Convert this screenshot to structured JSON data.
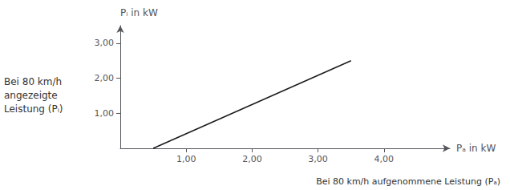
{
  "chart_data": {
    "type": "line",
    "x": [
      0.5,
      3.5
    ],
    "values": [
      0.0,
      2.5
    ],
    "color": "#1a1a1a",
    "xlabel": "Pₐ in kW",
    "ylabel": "Pᵢ in kW",
    "xlim": [
      0,
      5.0
    ],
    "ylim": [
      0,
      3.5
    ],
    "xticks": [
      {
        "value": 1.0,
        "label": "1,00"
      },
      {
        "value": 2.0,
        "label": "2,00"
      },
      {
        "value": 3.0,
        "label": "3,00"
      },
      {
        "value": 4.0,
        "label": "4,00"
      }
    ],
    "yticks": [
      {
        "value": 1.0,
        "label": "1,00"
      },
      {
        "value": 2.0,
        "label": "2,00"
      },
      {
        "value": 3.0,
        "label": "3,00"
      }
    ],
    "annotations": [
      "Bei 80 km/h\nangezeigte\nLeistung (Pᵢ)",
      "Bei 80 km/h aufgenommene Leistung (Pₐ)"
    ],
    "grid": false
  }
}
